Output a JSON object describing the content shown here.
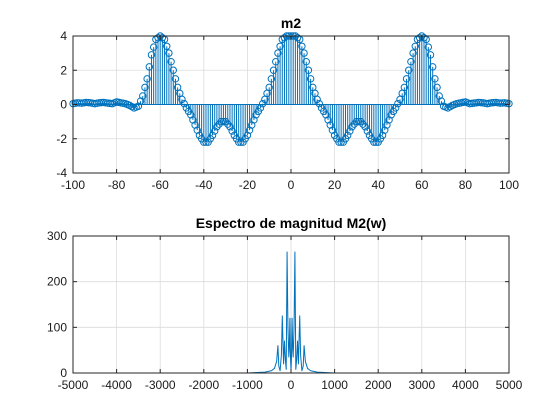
{
  "colors": {
    "series": "#0072BD",
    "grid": "#DCDCDC",
    "axis": "#262626",
    "background": "#FFFFFF"
  },
  "chart_data": [
    {
      "type": "stem",
      "title": "m2",
      "xlabel": "",
      "ylabel": "",
      "xlim": [
        -100,
        100
      ],
      "ylim": [
        -4,
        4
      ],
      "xticks": [
        -100,
        -80,
        -60,
        -40,
        -20,
        0,
        20,
        40,
        60,
        80,
        100
      ],
      "yticks": [
        -4,
        -2,
        0,
        2,
        4
      ],
      "xtick_labels": [
        "-100",
        "-80",
        "-60",
        "-40",
        "-20",
        "0",
        "20",
        "40",
        "60",
        "80",
        "100"
      ],
      "ytick_labels": [
        "-4",
        "-2",
        "0",
        "2",
        "4"
      ],
      "grid": true,
      "marker": "circle",
      "sample_step": 1,
      "x": [
        -100,
        -98,
        -96,
        -94,
        -92,
        -90,
        -88,
        -86,
        -84,
        -82,
        -80,
        -78,
        -76,
        -74,
        -72,
        -70,
        -68,
        -66,
        -64,
        -62,
        -60,
        -58,
        -56,
        -54,
        -52,
        -50,
        -48,
        -46,
        -44,
        -42,
        -40,
        -38,
        -36,
        -34,
        -32,
        -30,
        -28,
        -26,
        -24,
        -22,
        -20,
        -18,
        -16,
        -14,
        -12,
        -10,
        -8,
        -6,
        -4,
        -2,
        0,
        2,
        4,
        6,
        8,
        10,
        12,
        14,
        16,
        18,
        20,
        22,
        24,
        26,
        28,
        30,
        32,
        34,
        36,
        38,
        40,
        42,
        44,
        46,
        48,
        50,
        52,
        54,
        56,
        58,
        60,
        62,
        64,
        66,
        68,
        70,
        72,
        74,
        76,
        78,
        80,
        82,
        84,
        86,
        88,
        90,
        92,
        94,
        96,
        98,
        100
      ],
      "y": [
        0.05,
        0.1,
        0.08,
        0.12,
        0.1,
        0.05,
        0.1,
        0.12,
        0.08,
        0.05,
        0.15,
        0.1,
        0.05,
        -0.05,
        -0.2,
        -0.1,
        0.5,
        1.5,
        2.9,
        3.8,
        4.0,
        3.8,
        3.0,
        2.0,
        1.0,
        0.3,
        -0.2,
        -0.6,
        -1.2,
        -1.8,
        -2.2,
        -2.2,
        -1.8,
        -1.3,
        -1.0,
        -1.0,
        -1.3,
        -1.8,
        -2.2,
        -2.2,
        -1.8,
        -1.2,
        -0.6,
        -0.2,
        0.3,
        1.0,
        2.0,
        3.0,
        3.8,
        4.0,
        4.0,
        4.0,
        3.8,
        3.0,
        2.0,
        1.0,
        0.3,
        -0.2,
        -0.6,
        -1.2,
        -1.8,
        -2.2,
        -2.2,
        -1.8,
        -1.3,
        -1.0,
        -1.0,
        -1.3,
        -1.8,
        -2.2,
        -2.2,
        -1.8,
        -1.2,
        -0.6,
        -0.2,
        0.3,
        1.0,
        2.0,
        3.0,
        3.8,
        4.0,
        3.8,
        2.9,
        1.5,
        0.5,
        -0.1,
        -0.2,
        -0.05,
        0.05,
        0.1,
        0.15,
        0.05,
        0.08,
        0.12,
        0.1,
        0.05,
        0.1,
        0.12,
        0.08,
        0.1,
        0.05
      ]
    },
    {
      "type": "line",
      "title": "Espectro de magnitud M2(w)",
      "xlabel": "",
      "ylabel": "",
      "xlim": [
        -5000,
        5000
      ],
      "ylim": [
        0,
        300
      ],
      "xticks": [
        -5000,
        -4000,
        -3000,
        -2000,
        -1000,
        0,
        1000,
        2000,
        3000,
        4000,
        5000
      ],
      "yticks": [
        0,
        100,
        200,
        300
      ],
      "xtick_labels": [
        "-5000",
        "-4000",
        "-3000",
        "-2000",
        "-1000",
        "0",
        "1000",
        "2000",
        "3000",
        "4000",
        "5000"
      ],
      "ytick_labels": [
        "0",
        "100",
        "200",
        "300"
      ],
      "grid": true,
      "x": [
        -4500,
        -1000,
        -600,
        -450,
        -380,
        -330,
        -300,
        -280,
        -250,
        -220,
        -200,
        -170,
        -150,
        -130,
        -110,
        -90,
        -70,
        -50,
        -40,
        -25,
        -10,
        0,
        10,
        25,
        40,
        50,
        70,
        90,
        110,
        130,
        150,
        170,
        200,
        220,
        250,
        280,
        300,
        330,
        380,
        450,
        600,
        1000,
        4500
      ],
      "y": [
        0,
        0,
        2,
        5,
        10,
        25,
        60,
        15,
        5,
        40,
        125,
        20,
        70,
        30,
        8,
        265,
        100,
        35,
        50,
        120,
        30,
        5,
        30,
        120,
        50,
        35,
        100,
        265,
        8,
        30,
        70,
        20,
        125,
        40,
        5,
        15,
        60,
        25,
        10,
        5,
        2,
        0,
        0
      ]
    }
  ]
}
